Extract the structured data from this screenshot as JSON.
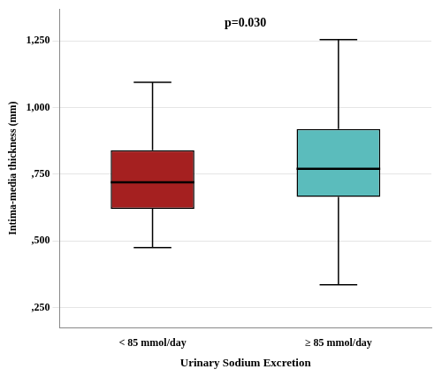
{
  "chart_data": {
    "type": "box",
    "xlabel": "Urinary Sodium Excretion",
    "ylabel": "Intima-media thickness (mm)",
    "annotation": "p=0.030",
    "categories": [
      "< 85 mmol/day",
      "≥ 85 mmol/day"
    ],
    "whisker_low": [
      0.475,
      0.335
    ],
    "q1": [
      0.62,
      0.665
    ],
    "median": [
      0.72,
      0.77
    ],
    "q3": [
      0.84,
      0.92
    ],
    "whisker_high": [
      1.095,
      1.255
    ],
    "colors": [
      "#A52020",
      "#5BBCBC"
    ],
    "ylim": [
      0.175,
      1.37
    ],
    "yticks": [
      {
        "value": 0.25,
        "label": ",250"
      },
      {
        "value": 0.5,
        "label": ",500"
      },
      {
        "value": 0.75,
        "label": ",750"
      },
      {
        "value": 1.0,
        "label": "1,000"
      },
      {
        "value": 1.25,
        "label": "1,250"
      }
    ],
    "grid": true
  }
}
